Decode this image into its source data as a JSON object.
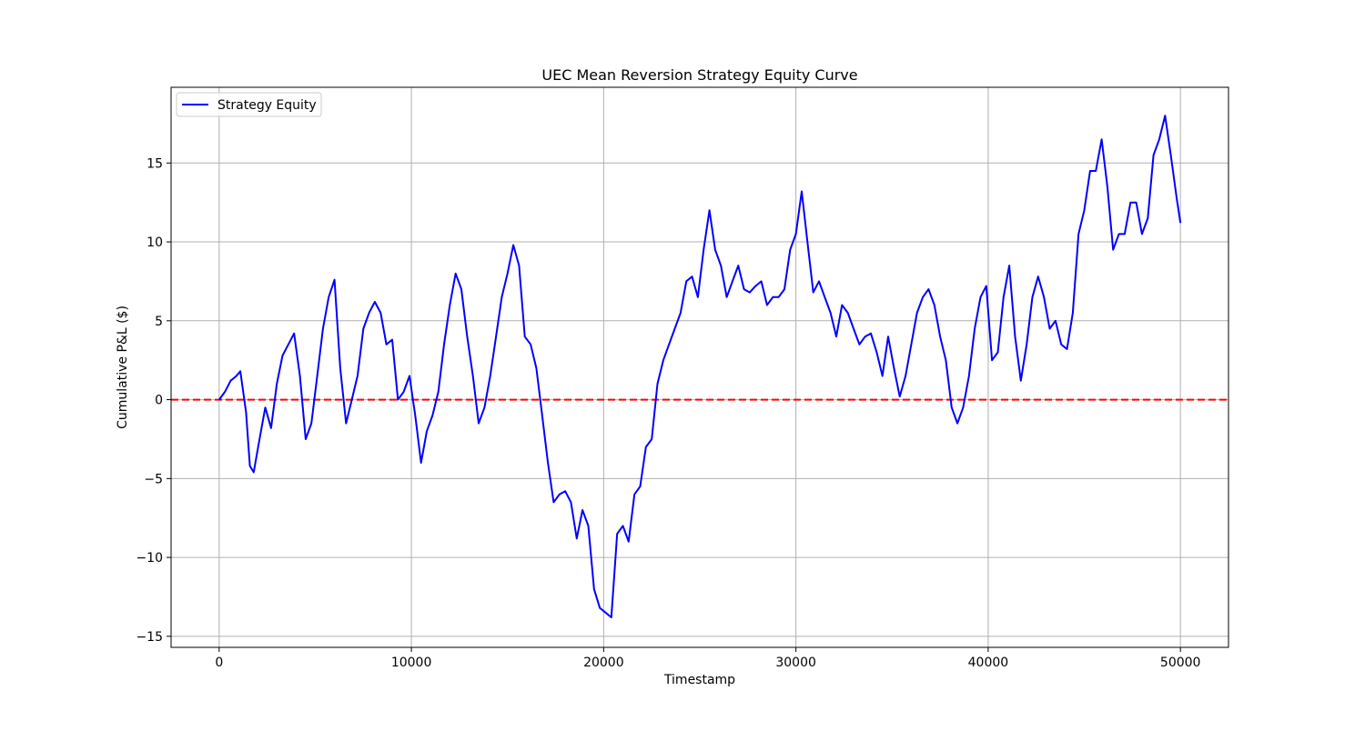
{
  "chart_data": {
    "type": "line",
    "title": "UEC Mean Reversion Strategy Equity Curve",
    "xlabel": "Timestamp",
    "ylabel": "Cumulative P&L ($)",
    "xlim": [
      -2500,
      52500
    ],
    "ylim": [
      -15.7,
      19.8
    ],
    "x_ticks": [
      0,
      10000,
      20000,
      30000,
      40000,
      50000
    ],
    "x_tick_labels": [
      "0",
      "10000",
      "20000",
      "30000",
      "40000",
      "50000"
    ],
    "y_ticks": [
      -15,
      -10,
      -5,
      0,
      5,
      10,
      15
    ],
    "y_tick_labels": [
      "−15",
      "−10",
      "−5",
      "0",
      "5",
      "10",
      "15"
    ],
    "grid": true,
    "legend_position": "top-left",
    "series": [
      {
        "name": "Strategy Equity",
        "color": "#0000ff",
        "x": [
          0,
          300,
          600,
          900,
          1100,
          1400,
          1600,
          1800,
          2100,
          2400,
          2700,
          3000,
          3300,
          3600,
          3900,
          4200,
          4500,
          4800,
          5100,
          5400,
          5700,
          6000,
          6300,
          6600,
          6900,
          7200,
          7500,
          7800,
          8100,
          8400,
          8700,
          9000,
          9300,
          9600,
          9900,
          10200,
          10500,
          10800,
          11100,
          11400,
          11700,
          12000,
          12300,
          12600,
          12900,
          13200,
          13500,
          13800,
          14100,
          14400,
          14700,
          15000,
          15300,
          15600,
          15900,
          16200,
          16500,
          16800,
          17100,
          17400,
          17700,
          18000,
          18300,
          18600,
          18900,
          19200,
          19500,
          19800,
          20100,
          20400,
          20700,
          21000,
          21300,
          21600,
          21900,
          22200,
          22500,
          22800,
          23100,
          23400,
          23700,
          24000,
          24300,
          24600,
          24900,
          25200,
          25500,
          25800,
          26100,
          26400,
          26700,
          27000,
          27300,
          27600,
          27900,
          28200,
          28500,
          28800,
          29100,
          29400,
          29700,
          30000,
          30300,
          30600,
          30900,
          31200,
          31500,
          31800,
          32100,
          32400,
          32700,
          33000,
          33300,
          33600,
          33900,
          34200,
          34500,
          34800,
          35100,
          35400,
          35700,
          36000,
          36300,
          36600,
          36900,
          37200,
          37500,
          37800,
          38100,
          38400,
          38700,
          39000,
          39300,
          39600,
          39900,
          40200,
          40500,
          40800,
          41100,
          41400,
          41700,
          42000,
          42300,
          42600,
          42900,
          43200,
          43500,
          43800,
          44100,
          44400,
          44700,
          45000,
          45300,
          45600,
          45900,
          46200,
          46500,
          46800,
          47100,
          47400,
          47700,
          48000,
          48300,
          48600,
          48900,
          49200,
          49500,
          49800,
          50000
        ],
        "y": [
          0.0,
          0.5,
          1.2,
          1.5,
          1.8,
          -0.8,
          -4.2,
          -4.6,
          -2.5,
          -0.5,
          -1.8,
          1.0,
          2.8,
          3.5,
          4.2,
          1.5,
          -2.5,
          -1.5,
          1.5,
          4.5,
          6.5,
          7.6,
          2.0,
          -1.5,
          0.0,
          1.5,
          4.5,
          5.5,
          6.2,
          5.5,
          3.5,
          3.8,
          0.0,
          0.5,
          1.5,
          -1.0,
          -4.0,
          -2.0,
          -1.0,
          0.5,
          3.5,
          6.0,
          8.0,
          7.0,
          4.0,
          1.5,
          -1.5,
          -0.5,
          1.5,
          4.0,
          6.5,
          8.0,
          9.8,
          8.5,
          4.0,
          3.5,
          2.0,
          -1.0,
          -4.0,
          -6.5,
          -6.0,
          -5.8,
          -6.5,
          -8.8,
          -7.0,
          -8.0,
          -12.0,
          -13.2,
          -13.5,
          -13.8,
          -8.5,
          -8.0,
          -9.0,
          -6.0,
          -5.5,
          -3.0,
          -2.5,
          1.0,
          2.5,
          3.5,
          4.5,
          5.5,
          7.5,
          7.8,
          6.5,
          9.5,
          12.0,
          9.5,
          8.5,
          6.5,
          7.5,
          8.5,
          7.0,
          6.8,
          7.2,
          7.5,
          6.0,
          6.5,
          6.5,
          7.0,
          9.5,
          10.5,
          13.2,
          10.0,
          6.8,
          7.5,
          6.5,
          5.5,
          4.0,
          6.0,
          5.5,
          4.5,
          3.5,
          4.0,
          4.2,
          3.0,
          1.5,
          4.0,
          2.0,
          0.2,
          1.5,
          3.5,
          5.5,
          6.5,
          7.0,
          6.0,
          4.0,
          2.5,
          -0.5,
          -1.5,
          -0.5,
          1.5,
          4.5,
          6.5,
          7.2,
          2.5,
          3.0,
          6.5,
          8.5,
          4.0,
          1.2,
          3.5,
          6.5,
          7.8,
          6.5,
          4.5,
          5.0,
          3.5,
          3.2,
          5.5,
          10.5,
          12.0,
          14.5,
          14.5,
          16.5,
          13.5,
          9.5,
          10.5,
          10.5,
          12.5,
          12.5,
          10.5,
          11.5,
          15.5,
          16.5,
          18.0,
          15.5,
          12.8,
          11.2
        ]
      }
    ],
    "reference_lines": [
      {
        "y": 0,
        "color": "#ff0000",
        "style": "dashed"
      }
    ]
  }
}
